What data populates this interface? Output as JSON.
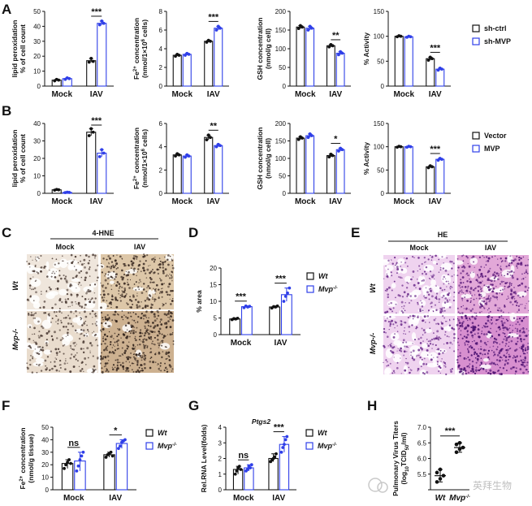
{
  "chart_data": [
    {
      "id": "A1",
      "panel": "A",
      "type": "bar",
      "ylabel": "lipid peroxidation\n% of cell count",
      "categories": [
        "Mock",
        "IAV"
      ],
      "ylim": [
        0,
        50
      ],
      "yticks": [
        0,
        10,
        20,
        30,
        40,
        50
      ],
      "series": [
        {
          "name": "sh-ctrl",
          "values": [
            4,
            17
          ],
          "points": [
            [
              3.5,
              4.5,
              4
            ],
            [
              16,
              18.5,
              16.5
            ]
          ]
        },
        {
          "name": "sh-MVP",
          "values": [
            5,
            42
          ],
          "points": [
            [
              4.5,
              5.5,
              5
            ],
            [
              41,
              43.5,
              42
            ]
          ]
        }
      ],
      "sig": [
        {
          "cat": 1,
          "label": "***"
        }
      ]
    },
    {
      "id": "A2",
      "panel": "A",
      "type": "bar",
      "ylabel": "Fe2+ concentration\n(nmol/1x10^6 cells)",
      "categories": [
        "Mock",
        "IAV"
      ],
      "ylim": [
        0,
        8
      ],
      "yticks": [
        0,
        2,
        4,
        6,
        8
      ],
      "series": [
        {
          "name": "sh-ctrl",
          "values": [
            3.3,
            4.8
          ],
          "points": [
            [
              3.2,
              3.4,
              3.3
            ],
            [
              4.7,
              4.9,
              4.8
            ]
          ]
        },
        {
          "name": "sh-MVP",
          "values": [
            3.4,
            6.2
          ],
          "points": [
            [
              3.3,
              3.5,
              3.4
            ],
            [
              6.0,
              6.4,
              6.2
            ]
          ]
        }
      ],
      "sig": [
        {
          "cat": 1,
          "label": "***"
        }
      ]
    },
    {
      "id": "A3",
      "panel": "A",
      "type": "bar",
      "ylabel": "GSH concentration\n(nmol/g cell)",
      "categories": [
        "Mock",
        "IAV"
      ],
      "ylim": [
        0,
        200
      ],
      "yticks": [
        0,
        50,
        100,
        150,
        200
      ],
      "series": [
        {
          "name": "sh-ctrl",
          "values": [
            158,
            108
          ],
          "points": [
            [
              154,
              162,
              158
            ],
            [
              105,
              111,
              108
            ]
          ]
        },
        {
          "name": "sh-MVP",
          "values": [
            155,
            88
          ],
          "points": [
            [
              150,
              160,
              155
            ],
            [
              84,
              92,
              88
            ]
          ]
        }
      ],
      "sig": [
        {
          "cat": 1,
          "label": "**"
        }
      ]
    },
    {
      "id": "A4",
      "panel": "A",
      "type": "bar",
      "ylabel": "% Activity",
      "categories": [
        "Mock",
        "IAV"
      ],
      "ylim": [
        0,
        150
      ],
      "yticks": [
        0,
        50,
        100,
        150
      ],
      "series": [
        {
          "name": "sh-ctrl",
          "values": [
            100,
            55
          ],
          "points": [
            [
              99,
              101,
              100
            ],
            [
              52,
              58,
              55
            ]
          ]
        },
        {
          "name": "sh-MVP",
          "values": [
            99,
            34
          ],
          "points": [
            [
              98,
              100,
              99
            ],
            [
              32,
              36,
              34
            ]
          ]
        }
      ],
      "sig": [
        {
          "cat": 1,
          "label": "***"
        }
      ]
    },
    {
      "id": "B1",
      "panel": "B",
      "type": "bar",
      "ylabel": "lipid peroxidation\n% of cell count",
      "categories": [
        "Mock",
        "IAV"
      ],
      "ylim": [
        0,
        40
      ],
      "yticks": [
        0,
        10,
        20,
        30,
        40
      ],
      "series": [
        {
          "name": "Vector",
          "values": [
            2,
            35
          ],
          "points": [
            [
              1.8,
              2.2,
              2
            ],
            [
              33,
              37,
              35
            ]
          ]
        },
        {
          "name": "MVP",
          "values": [
            0.5,
            23
          ],
          "points": [
            [
              0.4,
              0.6,
              0.5
            ],
            [
              21,
              25,
              23
            ]
          ]
        }
      ],
      "sig": [
        {
          "cat": 1,
          "label": "***"
        }
      ]
    },
    {
      "id": "B2",
      "panel": "B",
      "type": "bar",
      "ylabel": "Fe2+ concentration\n(nmol/1x10^6 cells)",
      "categories": [
        "Mock",
        "IAV"
      ],
      "ylim": [
        0,
        6
      ],
      "yticks": [
        0,
        2,
        4,
        6
      ],
      "series": [
        {
          "name": "Vector",
          "values": [
            3.3,
            4.8
          ],
          "points": [
            [
              3.2,
              3.4,
              3.3
            ],
            [
              4.6,
              5.0,
              4.8
            ]
          ]
        },
        {
          "name": "MVP",
          "values": [
            3.2,
            4.1
          ],
          "points": [
            [
              3.1,
              3.3,
              3.2
            ],
            [
              4.0,
              4.2,
              4.1
            ]
          ]
        }
      ],
      "sig": [
        {
          "cat": 1,
          "label": "**"
        }
      ]
    },
    {
      "id": "B3",
      "panel": "B",
      "type": "bar",
      "ylabel": "GSH concentration\n(nmol/g cell)",
      "categories": [
        "Mock",
        "IAV"
      ],
      "ylim": [
        0,
        200
      ],
      "yticks": [
        0,
        50,
        100,
        150,
        200
      ],
      "series": [
        {
          "name": "Vector",
          "values": [
            158,
            108
          ],
          "points": [
            [
              154,
              162,
              158
            ],
            [
              104,
              112,
              108
            ]
          ]
        },
        {
          "name": "MVP",
          "values": [
            165,
            125
          ],
          "points": [
            [
              160,
              170,
              165
            ],
            [
              121,
              129,
              125
            ]
          ]
        }
      ],
      "sig": [
        {
          "cat": 1,
          "label": "*"
        }
      ]
    },
    {
      "id": "B4",
      "panel": "B",
      "type": "bar",
      "ylabel": "% Activity",
      "categories": [
        "Mock",
        "IAV"
      ],
      "ylim": [
        0,
        150
      ],
      "yticks": [
        0,
        50,
        100,
        150
      ],
      "series": [
        {
          "name": "Vector",
          "values": [
            100,
            57
          ],
          "points": [
            [
              99,
              101,
              100
            ],
            [
              55,
              59,
              57
            ]
          ]
        },
        {
          "name": "MVP",
          "values": [
            100,
            73
          ],
          "points": [
            [
              99,
              101,
              100
            ],
            [
              71,
              75,
              73
            ]
          ]
        }
      ],
      "sig": [
        {
          "cat": 1,
          "label": "***"
        }
      ]
    },
    {
      "id": "D",
      "panel": "D",
      "type": "bar",
      "ylabel": "% area",
      "categories": [
        "Mock",
        "IAV"
      ],
      "ylim": [
        0,
        20
      ],
      "yticks": [
        0,
        5,
        10,
        15,
        20
      ],
      "series": [
        {
          "name": "Wt",
          "values": [
            4.7,
            8.3
          ],
          "points": [
            [
              4.5,
              4.8,
              4.7,
              4.9
            ],
            [
              8.0,
              8.4,
              8.3,
              8.6
            ]
          ]
        },
        {
          "name": "Mvp-/-",
          "values": [
            8.4,
            12.0
          ],
          "points": [
            [
              8.1,
              8.6,
              8.3,
              8.5
            ],
            [
              10.0,
              11.5,
              12.5,
              14.0
            ]
          ]
        }
      ],
      "sig": [
        {
          "cat": 0,
          "label": "***"
        },
        {
          "cat": 1,
          "label": "***"
        }
      ]
    },
    {
      "id": "F",
      "panel": "F",
      "type": "bar",
      "ylabel": "Fe2+ concentration\n(nmol/g tissue)",
      "categories": [
        "Mock",
        "IAV"
      ],
      "ylim": [
        0,
        50
      ],
      "yticks": [
        0,
        10,
        20,
        30,
        40,
        50
      ],
      "series": [
        {
          "name": "Wt",
          "values": [
            21,
            28
          ],
          "points": [
            [
              17,
              20,
              22,
              24,
              21
            ],
            [
              26,
              28,
              29,
              30,
              27
            ]
          ]
        },
        {
          "name": "Mvp-/-",
          "values": [
            23,
            37
          ],
          "points": [
            [
              15,
              19,
              24,
              27,
              30
            ],
            [
              33,
              35,
              38,
              39,
              40
            ]
          ]
        }
      ],
      "sig": [
        {
          "cat": 0,
          "label": "ns"
        },
        {
          "cat": 1,
          "label": "*"
        }
      ]
    },
    {
      "id": "G",
      "panel": "G",
      "type": "bar",
      "title": "Ptgs2",
      "ylabel": "Rel.RNA Level(folds)",
      "categories": [
        "Mock",
        "IAV"
      ],
      "ylim": [
        0,
        4
      ],
      "yticks": [
        0,
        1,
        2,
        3,
        4
      ],
      "series": [
        {
          "name": "Wt",
          "values": [
            1.3,
            2.0
          ],
          "points": [
            [
              1.0,
              1.2,
              1.4,
              1.5,
              1.3
            ],
            [
              1.8,
              1.9,
              2.0,
              2.1,
              2.3
            ]
          ]
        },
        {
          "name": "Mvp-/-",
          "values": [
            1.4,
            2.9
          ],
          "points": [
            [
              1.2,
              1.3,
              1.5,
              1.4,
              1.6
            ],
            [
              2.4,
              2.7,
              2.9,
              3.2,
              3.4
            ]
          ]
        }
      ],
      "sig": [
        {
          "cat": 0,
          "label": "ns"
        },
        {
          "cat": 1,
          "label": "***"
        }
      ]
    },
    {
      "id": "H",
      "panel": "H",
      "type": "scatter",
      "ylabel": "Pulmonary Virus Titers\n(log10TCID50/ml)",
      "categories": [
        "Wt",
        "Mvp-/-"
      ],
      "ylim": [
        5.0,
        7.0
      ],
      "yticks": [
        5.0,
        5.5,
        6.0,
        6.5,
        7.0
      ],
      "yticklabels": [
        "",
        "5.5",
        "6.0",
        "6.5",
        "7.0"
      ],
      "series": [
        {
          "name": "Wt",
          "mean": 5.45,
          "points": [
            5.25,
            5.35,
            5.45,
            5.55,
            5.65
          ]
        },
        {
          "name": "Mvp-/-",
          "mean": 6.35,
          "points": [
            6.2,
            6.3,
            6.35,
            6.45,
            6.5
          ]
        }
      ],
      "sig": [
        {
          "label": "***"
        }
      ]
    }
  ],
  "panel_letters": {
    "A": "A",
    "B": "B",
    "C": "C",
    "D": "D",
    "E": "E",
    "F": "F",
    "G": "G",
    "H": "H"
  },
  "legends": {
    "A": [
      "sh-ctrl",
      "sh-MVP"
    ],
    "B": [
      "Vector",
      "MVP"
    ],
    "mice": [
      "Wt",
      "Mvp-/-"
    ]
  },
  "micrographs": {
    "C": {
      "title": "4-HNE",
      "columns": [
        "Mock",
        "IAV"
      ],
      "rows": [
        "Wt",
        "Mvp-/-"
      ]
    },
    "E": {
      "title": "HE",
      "columns": [
        "Mock",
        "IAV"
      ],
      "rows": [
        "Wt",
        "Mvp-/-"
      ]
    }
  },
  "watermark": "英拜生物",
  "colors": {
    "series1": "#111111",
    "series2": "#2f3fe8",
    "ihc_bg": "#efe6dc",
    "ihc_dot": "#4a3a33",
    "he_bg": "#efd3ef",
    "he_dot": "#6a2a8a"
  }
}
